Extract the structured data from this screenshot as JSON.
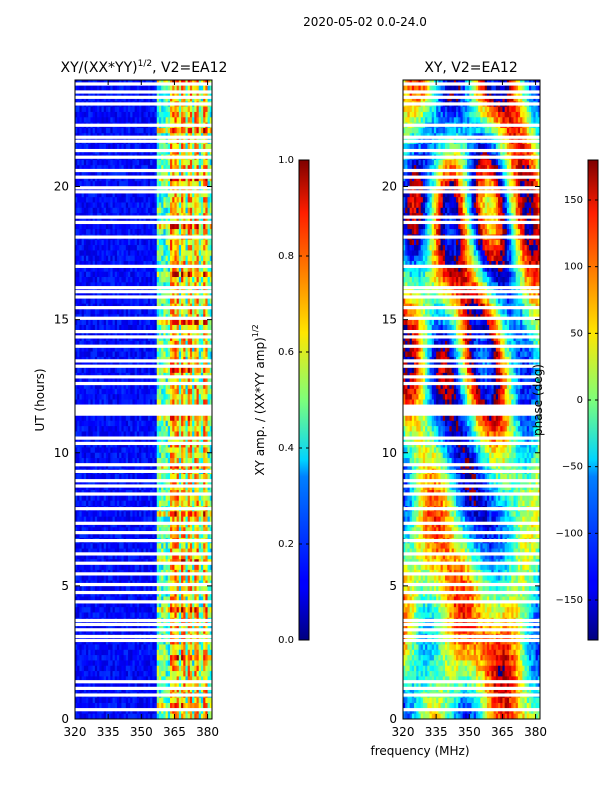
{
  "figure_title": "2020-05-02 0.0-24.0",
  "shared_xlabel": "frequency (MHz)",
  "chart_data": [
    {
      "type": "heatmap",
      "title": "XY/(XX*YY)^{1/2}, V2=EA12",
      "title_main": "XY/(XX*YY)",
      "title_sup": "1/2",
      "title_tail": ", V2=EA12",
      "xlabel": "frequency (MHz)",
      "ylabel": "UT (hours)",
      "xlim": [
        320,
        382
      ],
      "ylim": [
        0,
        24
      ],
      "xticks": [
        320,
        335,
        350,
        365,
        380
      ],
      "yticks": [
        0,
        5,
        10,
        15,
        20
      ],
      "colorbar": {
        "label": "XY amp. / (XX*YY amp)^{1/2}",
        "label_main": "XY amp. / (XX*YY amp)",
        "label_sup": "1/2",
        "range": [
          0.0,
          1.0
        ],
        "ticks": [
          "0.0",
          "0.2",
          "0.4",
          "0.6",
          "0.8",
          "1.0"
        ],
        "colormap": "jet"
      },
      "description_values": {
        "background_level": 0.08,
        "band_360_382_level": 0.45,
        "bright_channel_mhz": [
          364,
          366,
          369,
          372,
          375,
          379
        ]
      }
    },
    {
      "type": "heatmap",
      "title": "XY, V2=EA12",
      "xlabel": "frequency (MHz)",
      "ylabel": "",
      "xlim": [
        320,
        382
      ],
      "ylim": [
        0,
        24
      ],
      "xticks": [
        320,
        335,
        350,
        365,
        380
      ],
      "yticks": [
        0,
        5,
        10,
        15,
        20
      ],
      "colorbar": {
        "label": "phase (deg)",
        "range": [
          -180,
          180
        ],
        "ticks": [
          "-150",
          "-100",
          "-50",
          "0",
          "50",
          "100",
          "150"
        ],
        "colormap": "jet"
      }
    }
  ],
  "flagged_rows_ut": [
    0.35,
    0.9,
    1.15,
    1.4,
    2.95,
    3.1,
    3.35,
    3.55,
    3.7,
    4.4,
    4.75,
    5.05,
    5.45,
    5.85,
    6.2,
    6.7,
    7.0,
    7.35,
    7.9,
    8.45,
    8.75,
    8.95,
    9.3,
    9.55,
    10.35,
    10.55,
    11.45,
    11.55,
    11.65,
    11.75,
    12.6,
    12.85,
    13.25,
    13.45,
    14.0,
    14.35,
    14.55,
    15.05,
    15.45,
    15.85,
    16.05,
    16.2,
    17.0,
    18.1,
    18.65,
    18.85,
    19.8,
    19.95,
    20.35,
    20.6,
    21.1,
    21.35,
    21.7,
    21.85,
    22.3,
    23.1,
    23.35,
    23.55,
    23.85
  ]
}
